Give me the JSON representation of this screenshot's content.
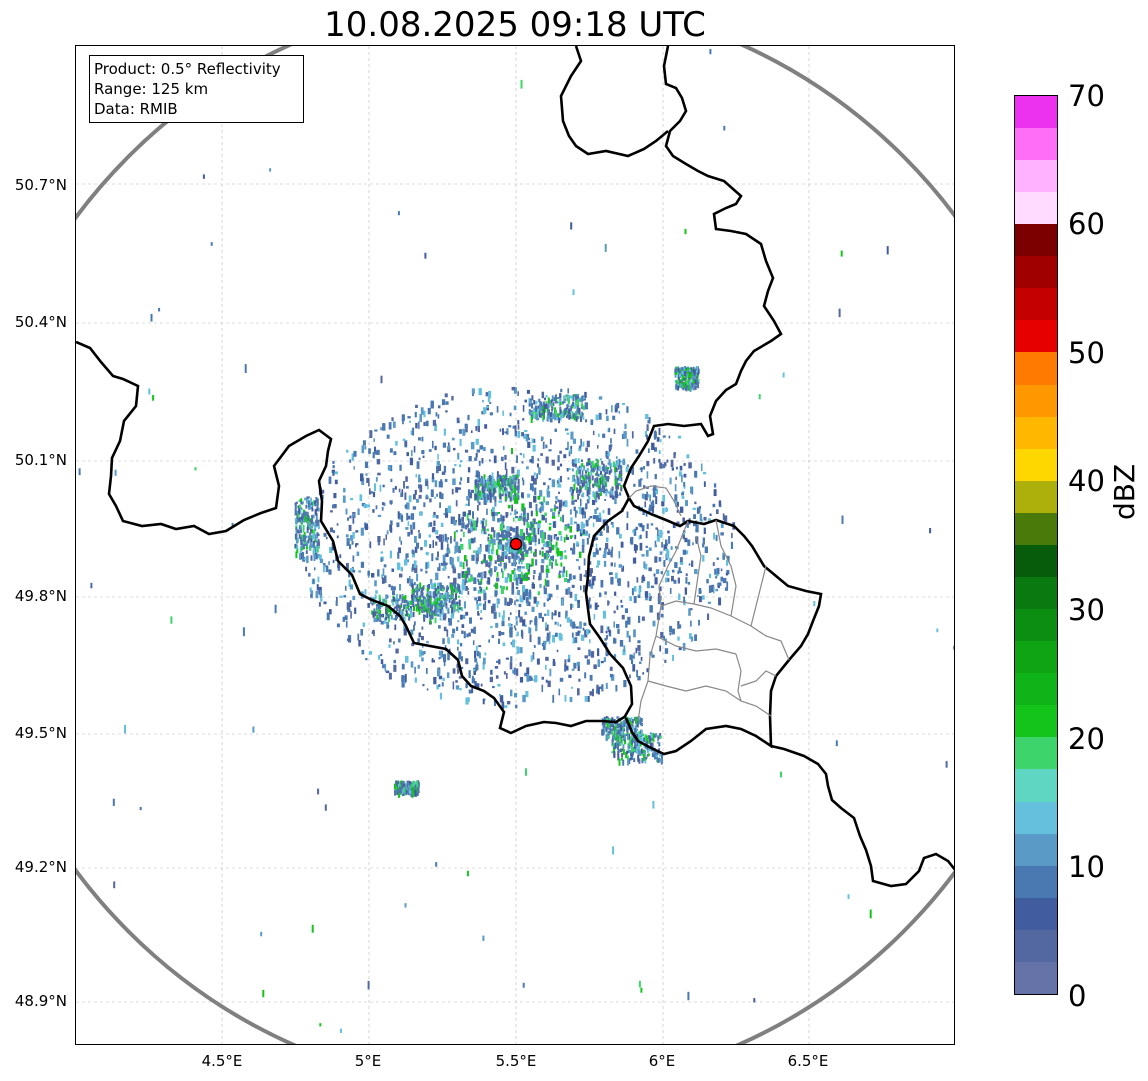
{
  "title": "10.08.2025 09:18 UTC",
  "info": {
    "product": "Product: 0.5° Reflectivity",
    "range": "Range: 125 km",
    "data": "Data: RMIB"
  },
  "lat_labels": [
    "50.7°N",
    "50.4°N",
    "50.1°N",
    "49.8°N",
    "49.5°N",
    "49.2°N",
    "48.9°N"
  ],
  "lon_labels": [
    "4.5°E",
    "5°E",
    "5.5°E",
    "6°E",
    "6.5°E"
  ],
  "colorbar": {
    "unit": "dBZ",
    "tick_labels": [
      "0",
      "10",
      "20",
      "30",
      "40",
      "50",
      "60",
      "70"
    ],
    "colors": [
      "#6673a8",
      "#5367a0",
      "#415d9f",
      "#4a78b0",
      "#5a9ac6",
      "#64c0dc",
      "#5fd6c2",
      "#3dd46b",
      "#15c41b",
      "#10b418",
      "#0ea414",
      "#0c8e12",
      "#0a7a10",
      "#075c0c",
      "#4a7a0a",
      "#adaf0a",
      "#ffd700",
      "#ffb700",
      "#ff9800",
      "#ff7a00",
      "#e60000",
      "#c40000",
      "#a00000",
      "#7d0000",
      "#ffdcff",
      "#ffb2ff",
      "#ff6ef7",
      "#ec32ee"
    ]
  },
  "radar_site": {
    "lon": 5.5,
    "lat": 49.915
  },
  "colors": {
    "range_ring": "#808080",
    "border_major": "#000000",
    "border_minor": "#888888",
    "site_marker": "#ff0000"
  }
}
